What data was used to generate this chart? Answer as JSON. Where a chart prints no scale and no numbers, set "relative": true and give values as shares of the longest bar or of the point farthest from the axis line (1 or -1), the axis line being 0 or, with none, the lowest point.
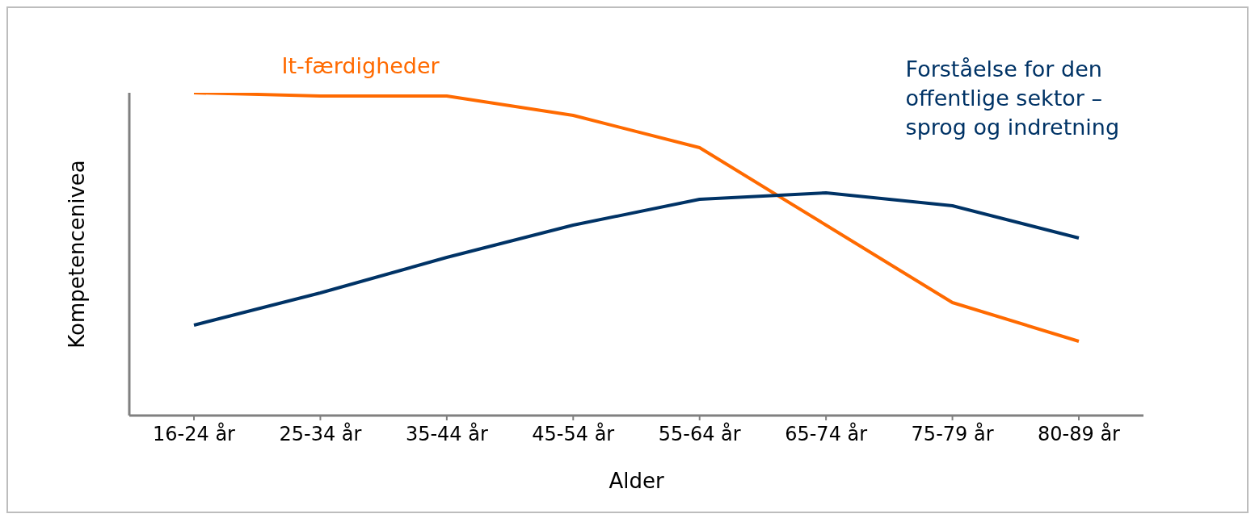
{
  "chart_data": {
    "type": "line",
    "relative": true,
    "xlabel": "Alder",
    "ylabel": "Kompetencenivea",
    "marker": "none",
    "categories": [
      "16-24 år",
      "25-34 år",
      "35-44 år",
      "45-54 år",
      "55-64 år",
      "65-74 år",
      "75-79 år",
      "80-89 år"
    ],
    "series": [
      {
        "name": "It-færdigheder",
        "color": "#ff6a00",
        "values": [
          1,
          0.99,
          0.99,
          0.93,
          0.83,
          0.59,
          0.35,
          0.23
        ]
      },
      {
        "name": "Forståelse for den offentlige sektor – sprog og indretning",
        "color": "#003366",
        "values": [
          0.28,
          0.38,
          0.49,
          0.59,
          0.67,
          0.69,
          0.65,
          0.55
        ]
      }
    ]
  }
}
